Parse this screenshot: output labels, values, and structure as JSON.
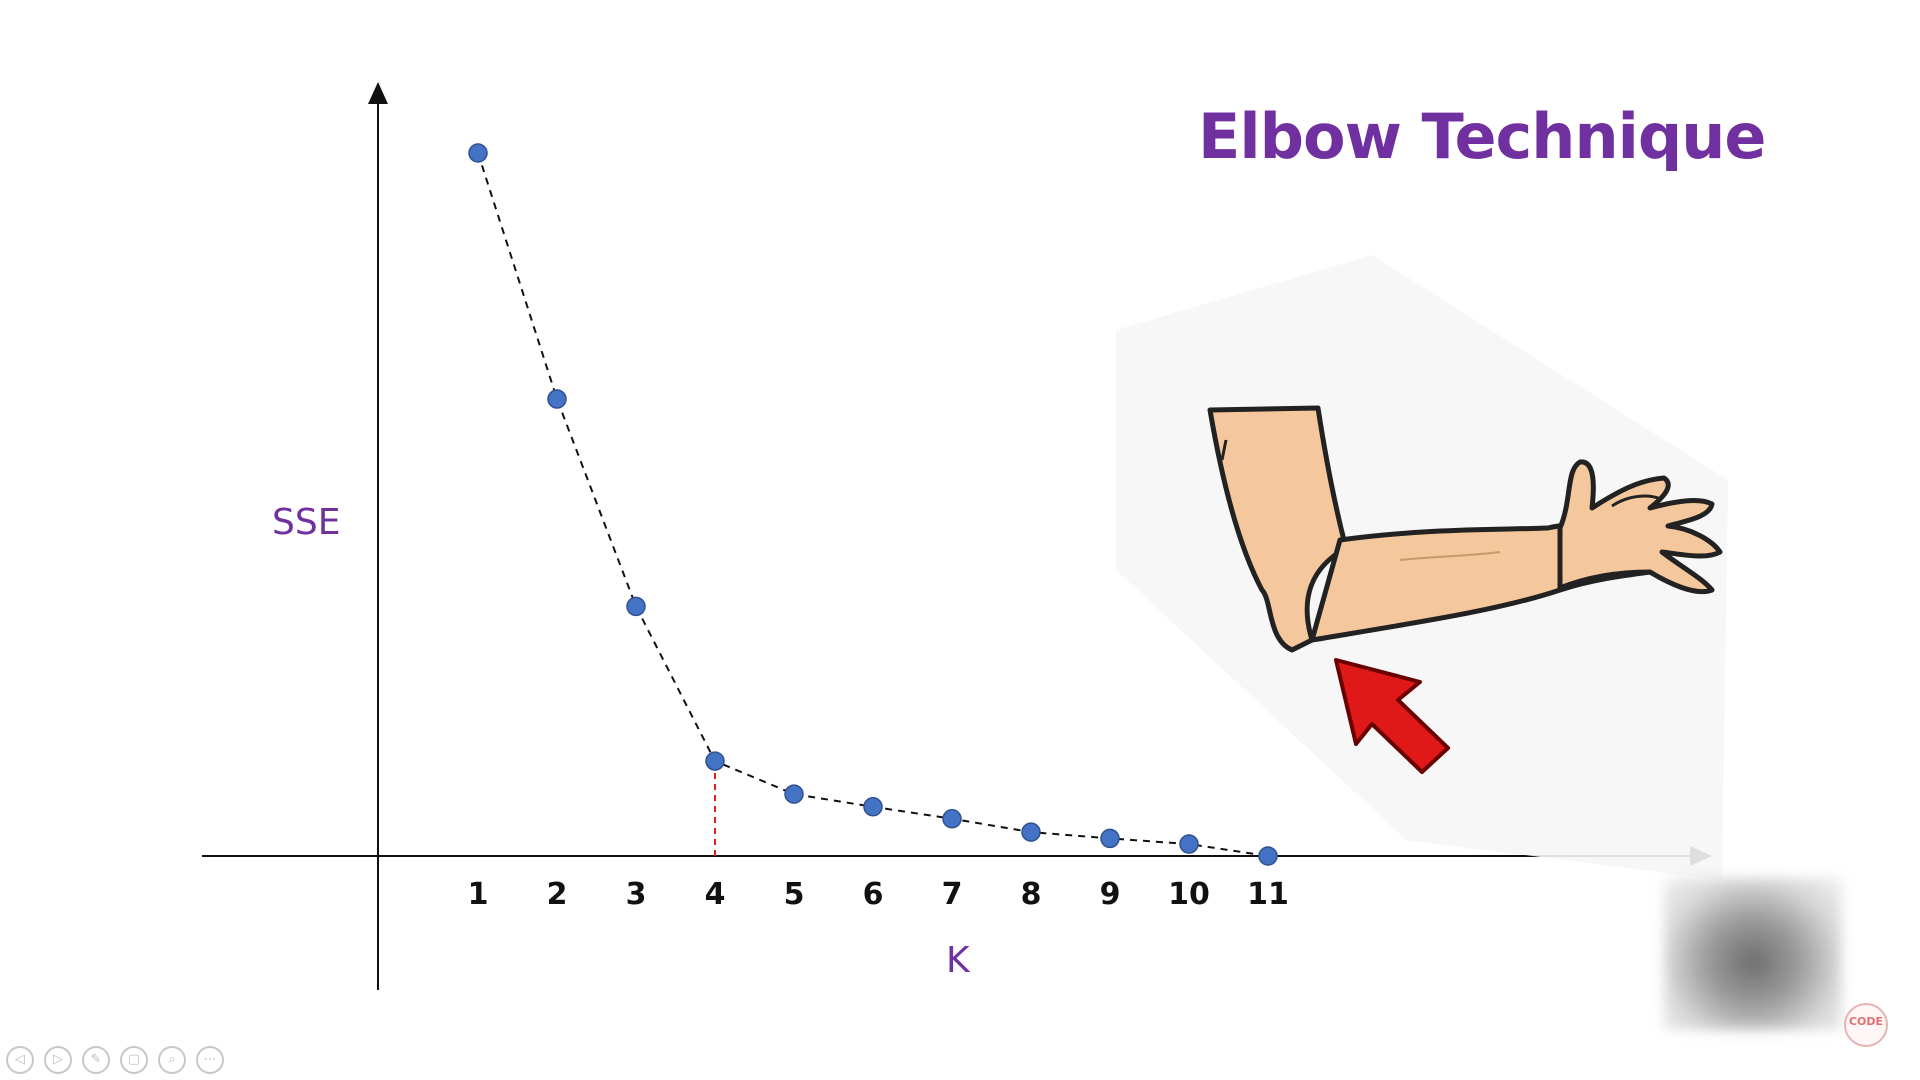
{
  "title": "Elbow Technique",
  "chart_data": {
    "type": "line",
    "title": "Elbow Technique",
    "xlabel": "K",
    "ylabel": "SSE",
    "categories": [
      "1",
      "2",
      "3",
      "4",
      "5",
      "6",
      "7",
      "8",
      "9",
      "10",
      "11"
    ],
    "x": [
      1,
      2,
      3,
      4,
      5,
      6,
      7,
      8,
      9,
      10,
      11
    ],
    "values": [
      100,
      65,
      35.5,
      13.5,
      8.8,
      7,
      5.3,
      3.4,
      2.5,
      1.7,
      0
    ],
    "ylim": [
      0,
      110
    ],
    "elbow_k": 4,
    "line_style": "dashed",
    "point_color": "#4472c4",
    "elbow_marker_color": "#e02020",
    "grid": false,
    "legend": "none"
  },
  "colors": {
    "title": "#7030a0",
    "axis_label": "#7030a0",
    "points": "#4472c4",
    "arrow": "#e01818",
    "skin": "#f4c89c"
  },
  "player_controls": [
    "◁",
    "▷",
    "✎",
    "▢",
    "⌕",
    "⋯"
  ],
  "logo": {
    "text": "CODE"
  }
}
